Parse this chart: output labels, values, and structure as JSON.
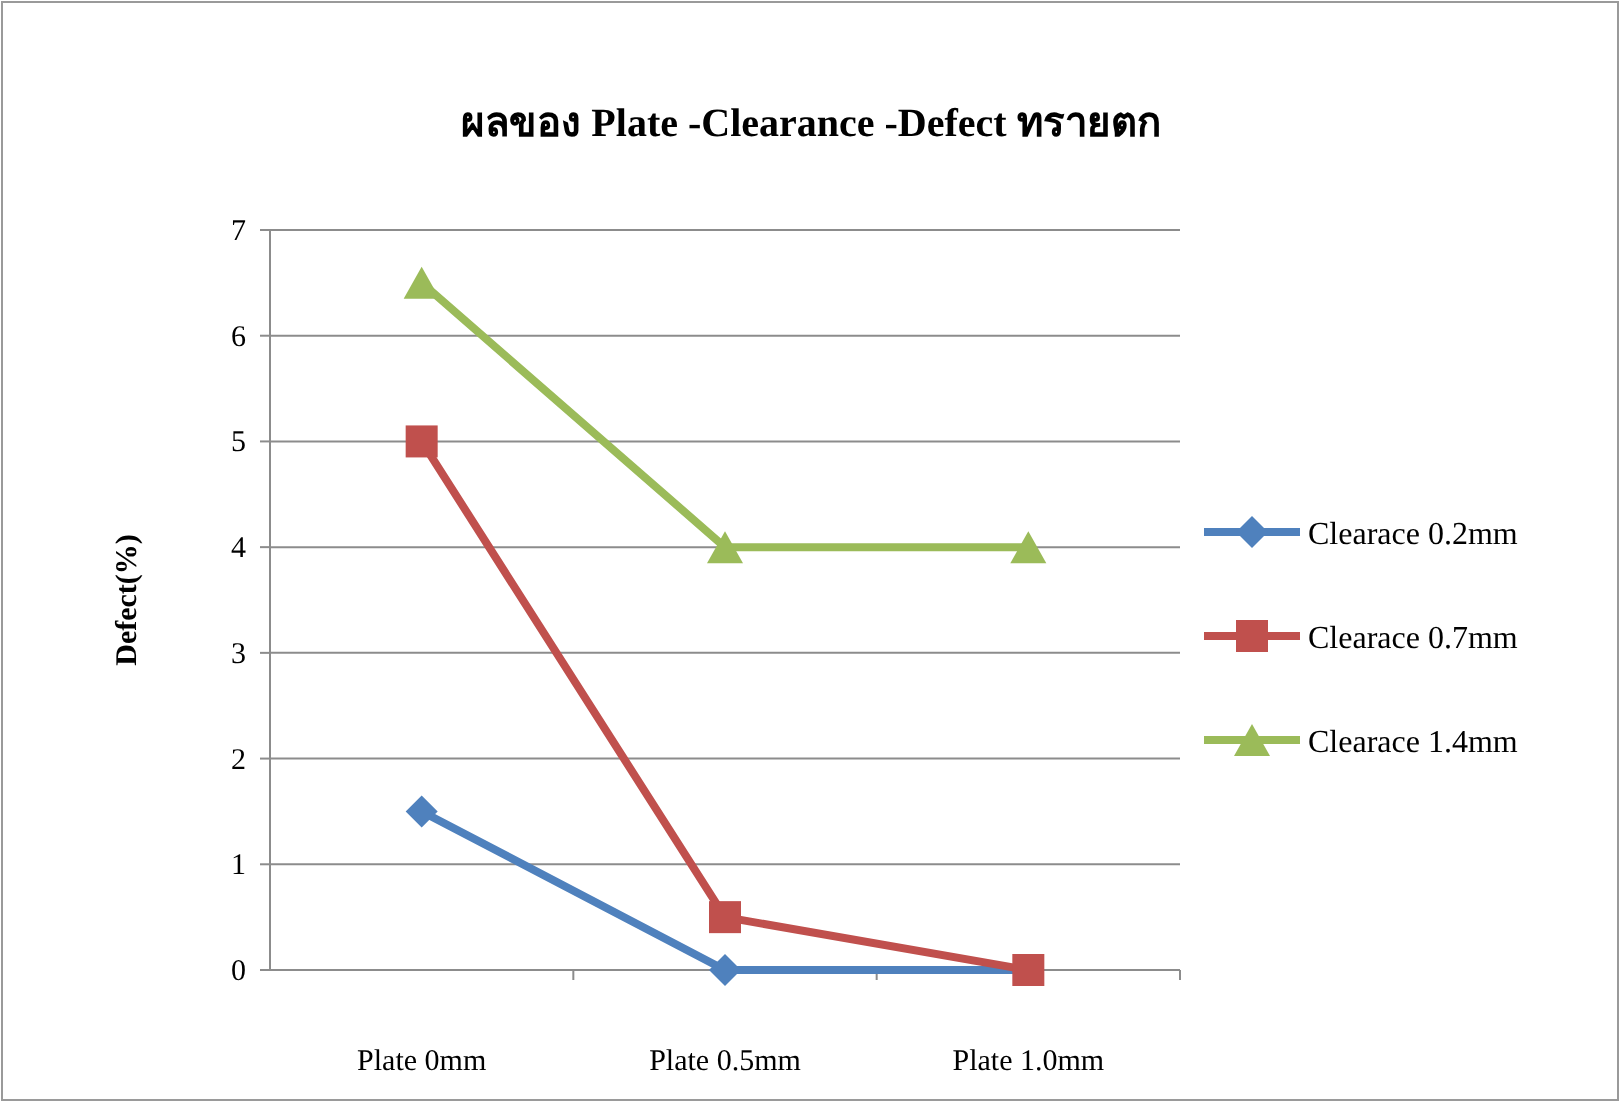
{
  "chart_data": {
    "type": "line",
    "title": "ผลของ Plate -Clearance -Defect ทรายตก",
    "ylabel": "Defect(%)",
    "categories": [
      "Plate  0mm",
      "Plate 0.5mm",
      "Plate 1.0mm"
    ],
    "series": [
      {
        "name": "Clearace 0.2mm",
        "color": "#4f81bd",
        "marker": "diamond",
        "values": [
          1.5,
          0,
          0
        ]
      },
      {
        "name": "Clearace 0.7mm",
        "color": "#c0504d",
        "marker": "square",
        "values": [
          5,
          0.5,
          0
        ]
      },
      {
        "name": "Clearace 1.4mm",
        "color": "#9bbb59",
        "marker": "triangle",
        "values": [
          6.5,
          4,
          4
        ]
      }
    ],
    "ylim": [
      0,
      7
    ],
    "yticks": [
      0,
      1,
      2,
      3,
      4,
      5,
      6,
      7
    ],
    "grid": "y",
    "legend": "right",
    "line_style": "solid"
  }
}
